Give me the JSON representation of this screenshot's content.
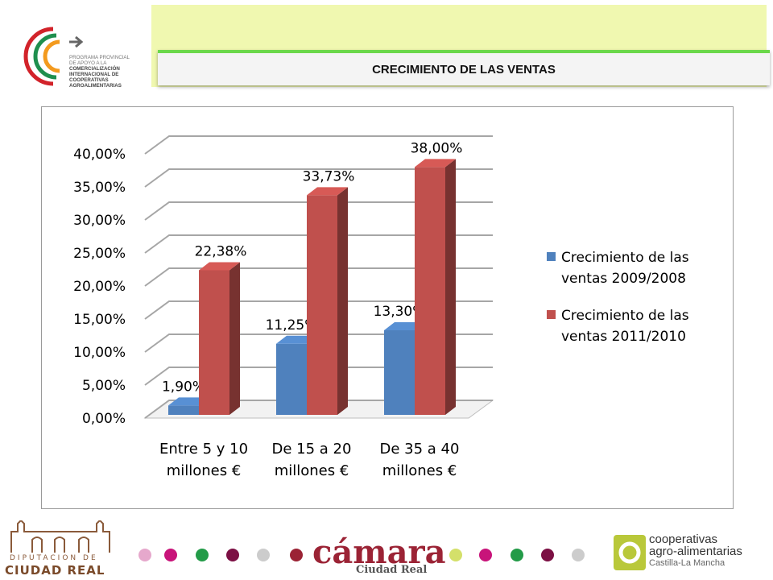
{
  "header": {
    "title": "CRECIMIENTO DE LAS VENTAS",
    "logo_text": [
      "PROGRAMA PROVINCIAL",
      "DE APOYO A LA",
      "COMERCIALIZACIÓN",
      "INTERNACIONAL DE",
      "COOPERATIVAS",
      "AGROALIMENTARIAS"
    ]
  },
  "chart_data": {
    "type": "bar",
    "categories": [
      [
        "Entre 5 y 10",
        "millones €"
      ],
      [
        "De 15 a 20",
        "millones €"
      ],
      [
        "De 35 a 40",
        "millones €"
      ]
    ],
    "series": [
      {
        "name": "Crecimiento de las ventas 2009/2008",
        "legend_lines": [
          "Crecimiento de las",
          "ventas 2009/2008"
        ],
        "values": [
          1.9,
          11.25,
          13.3
        ],
        "labels": [
          "1,90%",
          "11,25%",
          "13,30%"
        ],
        "color": "#4f81bd"
      },
      {
        "name": "Crecimiento de las ventas 2011/2010",
        "legend_lines": [
          "Crecimiento de las",
          "ventas 2011/2010"
        ],
        "values": [
          22.38,
          33.73,
          38.0
        ],
        "labels": [
          "22,38%",
          "33,73%",
          "38,00%"
        ],
        "color": "#c0504d"
      }
    ],
    "yticks": [
      "0,00%",
      "5,00%",
      "10,00%",
      "15,00%",
      "20,00%",
      "25,00%",
      "30,00%",
      "35,00%",
      "40,00%"
    ],
    "ylim": [
      0,
      40
    ],
    "grid": true,
    "legend_position": "right",
    "style": "3d-column"
  },
  "footer": {
    "left_logo": [
      "DIPUTACION DE",
      "CIUDAD REAL"
    ],
    "center_logo": [
      "cámara",
      "Ciudad Real"
    ],
    "right_logo": [
      "cooperativas",
      "agro-alimentarias",
      "Castilla-La Mancha"
    ],
    "dot_colors": [
      "#e6a8cc",
      "#c8147a",
      "#239b48",
      "#7c1044",
      "#cccccc",
      "#9b2335",
      "#d4e06a",
      "#c8147a",
      "#239b48",
      "#7c1044",
      "#cccccc"
    ]
  }
}
